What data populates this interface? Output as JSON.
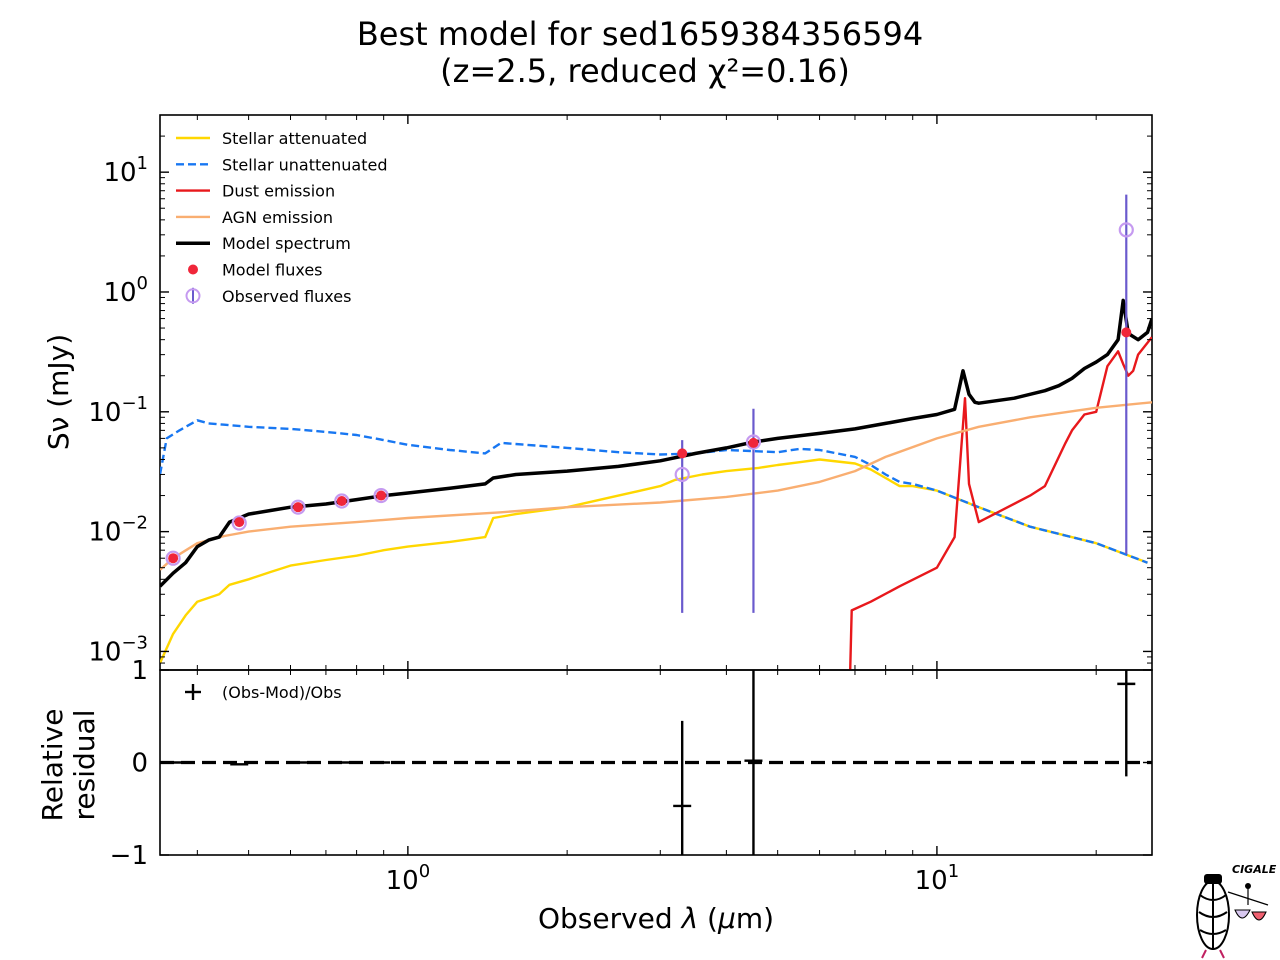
{
  "chart_data": [
    {
      "type": "line",
      "panel": "SED",
      "title_line1": "Best model for sed1659384356594",
      "title_line2": "(z=2.5, reduced χ²=0.16)",
      "ylabel": "Sν (mJy)",
      "yscale": "log",
      "xscale": "log",
      "xlim": [
        0.34,
        25.5
      ],
      "ylim": [
        0.0007,
        30
      ],
      "y_ticks": [
        {
          "value": 0.001,
          "label": "10^-3"
        },
        {
          "value": 0.01,
          "label": "10^-2"
        },
        {
          "value": 0.1,
          "label": "10^-1"
        },
        {
          "value": 1,
          "label": "10^0"
        },
        {
          "value": 10,
          "label": "10^1"
        }
      ],
      "legend_placement": "upper-left",
      "series": [
        {
          "name": "Stellar attenuated",
          "color": "#FFD700",
          "style": "solid",
          "x": [
            0.34,
            0.36,
            0.38,
            0.4,
            0.42,
            0.44,
            0.46,
            0.5,
            0.55,
            0.6,
            0.7,
            0.8,
            0.9,
            1.0,
            1.2,
            1.4,
            1.45,
            1.6,
            2.0,
            2.5,
            3.0,
            3.2,
            3.6,
            4.0,
            4.6,
            5.0,
            5.5,
            6.0,
            7.0,
            7.5,
            8.0,
            8.5,
            9.0,
            10.0,
            12.0,
            15.0,
            20.0,
            25.0
          ],
          "y": [
            0.0008,
            0.0014,
            0.002,
            0.0026,
            0.0028,
            0.003,
            0.0036,
            0.004,
            0.0046,
            0.0052,
            0.0058,
            0.0063,
            0.007,
            0.0075,
            0.0082,
            0.009,
            0.013,
            0.014,
            0.016,
            0.02,
            0.024,
            0.027,
            0.03,
            0.032,
            0.034,
            0.036,
            0.038,
            0.04,
            0.037,
            0.033,
            0.028,
            0.024,
            0.024,
            0.022,
            0.016,
            0.011,
            0.008,
            0.0055
          ]
        },
        {
          "name": "Stellar unattenuated",
          "color": "#1877F2",
          "style": "dashed",
          "x": [
            0.34,
            0.35,
            0.37,
            0.4,
            0.42,
            0.45,
            0.5,
            0.6,
            0.7,
            0.8,
            0.9,
            1.0,
            1.2,
            1.4,
            1.5,
            2.0,
            2.5,
            3.0,
            3.5,
            4.0,
            4.5,
            5.0,
            5.5,
            6.0,
            7.0,
            7.5,
            8.0,
            8.5,
            9.0,
            10.0,
            12.0,
            15.0,
            20.0,
            25.0
          ],
          "y": [
            0.03,
            0.06,
            0.07,
            0.085,
            0.08,
            0.078,
            0.075,
            0.072,
            0.068,
            0.064,
            0.058,
            0.053,
            0.048,
            0.045,
            0.055,
            0.05,
            0.046,
            0.044,
            0.045,
            0.048,
            0.047,
            0.046,
            0.049,
            0.048,
            0.042,
            0.036,
            0.03,
            0.026,
            0.025,
            0.022,
            0.016,
            0.011,
            0.008,
            0.0055
          ]
        },
        {
          "name": "Dust emission",
          "color": "#E8181C",
          "style": "solid",
          "x": [
            6.85,
            6.9,
            7.5,
            8.5,
            10.0,
            10.8,
            11.3,
            11.5,
            12.0,
            15.0,
            16.0,
            17.5,
            18.0,
            19.0,
            20.0,
            21.0,
            22.0,
            22.5,
            23.0,
            23.5,
            24.0,
            25.5
          ],
          "y": [
            0.0006,
            0.0022,
            0.0026,
            0.0035,
            0.005,
            0.009,
            0.13,
            0.025,
            0.012,
            0.02,
            0.024,
            0.055,
            0.07,
            0.095,
            0.1,
            0.24,
            0.32,
            0.25,
            0.2,
            0.22,
            0.3,
            0.42
          ]
        },
        {
          "name": "AGN emission",
          "color": "#F9AE71",
          "style": "solid",
          "x": [
            0.34,
            0.36,
            0.4,
            0.45,
            0.5,
            0.6,
            0.8,
            1.0,
            1.5,
            2.0,
            3.0,
            4.0,
            5.0,
            6.0,
            7.0,
            8.0,
            10.0,
            12.0,
            15.0,
            20.0,
            25.5
          ],
          "y": [
            0.0048,
            0.006,
            0.008,
            0.0092,
            0.01,
            0.011,
            0.012,
            0.013,
            0.0145,
            0.016,
            0.0175,
            0.0195,
            0.022,
            0.026,
            0.032,
            0.042,
            0.06,
            0.075,
            0.09,
            0.108,
            0.12
          ]
        },
        {
          "name": "Model spectrum",
          "color": "#000000",
          "style": "solid",
          "x": [
            0.34,
            0.36,
            0.38,
            0.4,
            0.42,
            0.44,
            0.46,
            0.5,
            0.55,
            0.6,
            0.7,
            0.8,
            0.9,
            1.0,
            1.2,
            1.4,
            1.45,
            1.6,
            2.0,
            2.5,
            3.0,
            3.5,
            4.0,
            4.5,
            5.0,
            6.0,
            7.0,
            8.0,
            9.0,
            10.0,
            10.8,
            11.2,
            11.5,
            11.8,
            12.0,
            14.0,
            16.0,
            17.0,
            18.0,
            19.0,
            20.0,
            21.0,
            22.0,
            22.5,
            23.0,
            24.0,
            25.0,
            25.5
          ],
          "y": [
            0.0035,
            0.0045,
            0.0055,
            0.0075,
            0.0085,
            0.009,
            0.012,
            0.014,
            0.015,
            0.016,
            0.017,
            0.0185,
            0.02,
            0.021,
            0.023,
            0.025,
            0.028,
            0.03,
            0.032,
            0.035,
            0.039,
            0.045,
            0.05,
            0.056,
            0.06,
            0.066,
            0.072,
            0.08,
            0.088,
            0.095,
            0.105,
            0.22,
            0.14,
            0.12,
            0.118,
            0.13,
            0.15,
            0.165,
            0.19,
            0.23,
            0.26,
            0.3,
            0.4,
            0.85,
            0.45,
            0.4,
            0.46,
            0.6
          ]
        }
      ],
      "model_fluxes": {
        "name": "Model fluxes",
        "color": "#F0263A",
        "x": [
          0.36,
          0.48,
          0.62,
          0.75,
          0.89,
          3.3,
          4.5,
          22.8
        ],
        "y": [
          0.006,
          0.012,
          0.016,
          0.018,
          0.02,
          0.045,
          0.055,
          0.46
        ]
      },
      "observed_fluxes": {
        "name": "Observed fluxes",
        "color": "#C59AF0",
        "errorbar_color": "#6A5ACD",
        "x": [
          0.36,
          0.48,
          0.62,
          0.75,
          0.89,
          3.3,
          4.5,
          22.8
        ],
        "y": [
          0.006,
          0.0118,
          0.016,
          0.018,
          0.02,
          0.03,
          0.056,
          3.3
        ],
        "err_low": [
          0.0058,
          0.0115,
          0.0158,
          0.0178,
          0.0198,
          0.0021,
          0.0021,
          0.0065
        ],
        "err_high": [
          0.0062,
          0.0121,
          0.0162,
          0.0182,
          0.0202,
          0.058,
          0.106,
          6.5
        ]
      }
    },
    {
      "type": "scatter",
      "panel": "residual",
      "ylabel": "Relative\nresidual",
      "xlabel": "Observed λ (μm)",
      "xscale": "log",
      "xlim": [
        0.34,
        25.5
      ],
      "ylim": [
        -1,
        1
      ],
      "y_ticks": [
        {
          "value": -1,
          "label": "−1"
        },
        {
          "value": 0,
          "label": "0"
        },
        {
          "value": 1,
          "label": "1"
        }
      ],
      "x_ticks": [
        {
          "value": 1,
          "label": "10^0"
        },
        {
          "value": 10,
          "label": "10^1"
        }
      ],
      "legend_placement": "upper-left",
      "series": [
        {
          "name": "(Obs-Mod)/Obs",
          "color": "#000000",
          "x": [
            0.36,
            0.48,
            0.62,
            0.75,
            0.89,
            3.3,
            4.5,
            22.8
          ],
          "y": [
            0.0,
            -0.02,
            0.0,
            0.0,
            0.0,
            -0.47,
            0.02,
            0.85
          ],
          "err_low": [
            0.0,
            0.0,
            0.0,
            0.0,
            0.0,
            -1.0,
            -1.0,
            -0.15
          ],
          "err_high": [
            0.0,
            0.0,
            0.0,
            0.0,
            0.0,
            0.45,
            1.0,
            1.0
          ]
        }
      ],
      "zero_line": {
        "value": 0,
        "style": "dashed",
        "color": "#000000"
      }
    }
  ],
  "logo": {
    "text": "CIGALE",
    "name": "cigale-logo"
  }
}
